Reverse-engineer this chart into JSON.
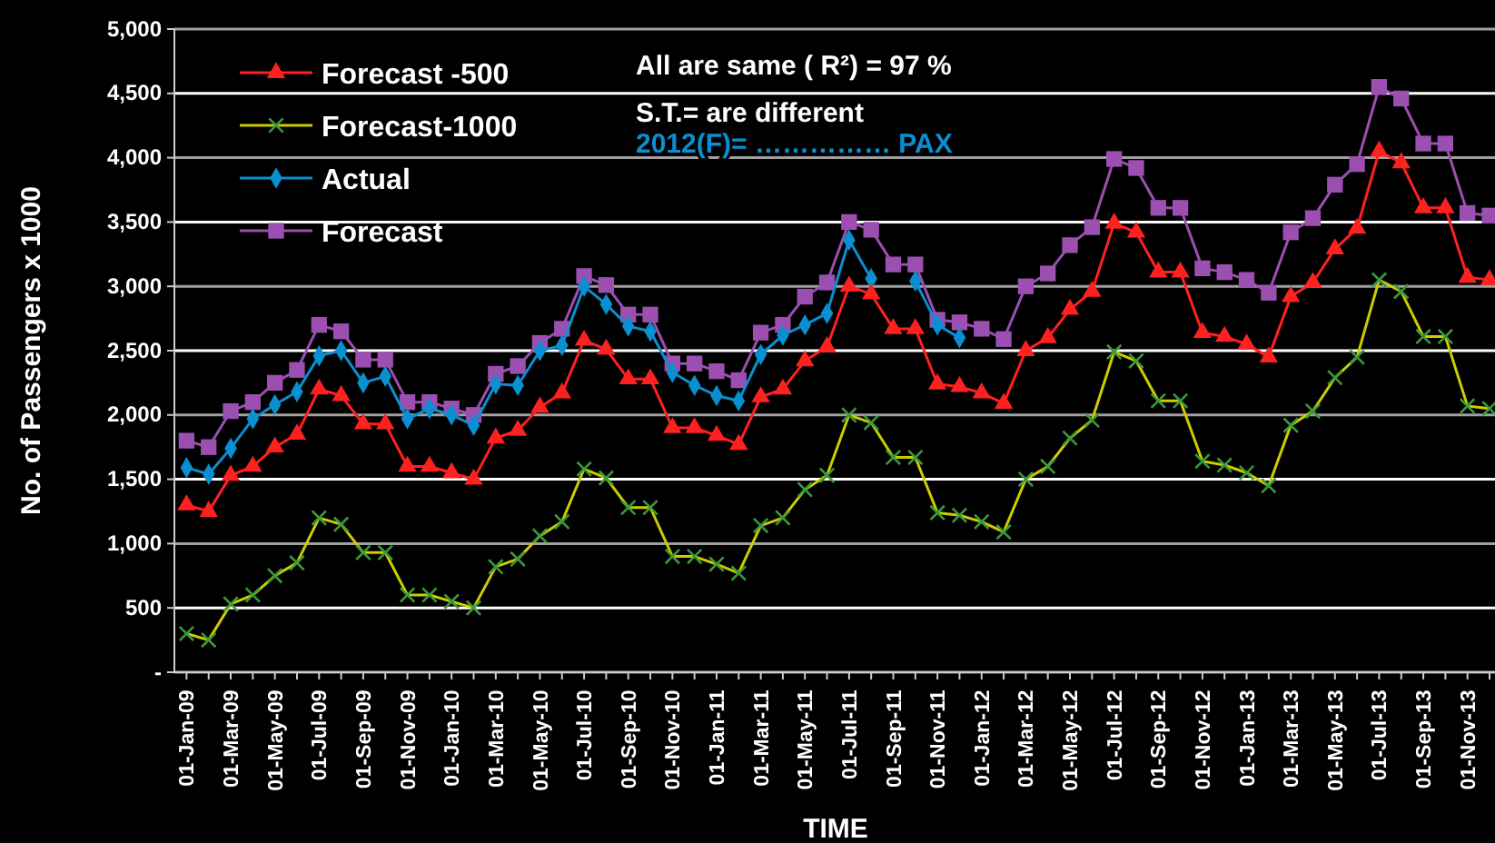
{
  "chart_data": {
    "type": "line",
    "xlabel": "TIME",
    "ylabel": "No. of Passengers x 1000",
    "categories": [
      "01-Jan-09",
      null,
      "01-Mar-09",
      null,
      "01-May-09",
      null,
      "01-Jul-09",
      null,
      "01-Sep-09",
      null,
      "01-Nov-09",
      null,
      "01-Jan-10",
      null,
      "01-Mar-10",
      null,
      "01-May-10",
      null,
      "01-Jul-10",
      null,
      "01-Sep-10",
      null,
      "01-Nov-10",
      null,
      "01-Jan-11",
      null,
      "01-Mar-11",
      null,
      "01-May-11",
      null,
      "01-Jul-11",
      null,
      "01-Sep-11",
      null,
      "01-Nov-11",
      null,
      "01-Jan-12",
      null,
      "01-Mar-12",
      null,
      "01-May-12",
      null,
      "01-Jul-12",
      null,
      "01-Sep-12",
      null,
      "01-Nov-12",
      null,
      "01-Jan-13",
      null,
      "01-Mar-13",
      null,
      "01-May-13",
      null,
      "01-Jul-13",
      null,
      "01-Sep-13",
      null,
      "01-Nov-13",
      null
    ],
    "series": [
      {
        "name": "Forecast -500",
        "color": "#ff2020",
        "marker": "triangle",
        "values": [
          1300,
          1250,
          1530,
          1600,
          1750,
          1850,
          2200,
          2150,
          1930,
          1930,
          1600,
          1600,
          1550,
          1500,
          1820,
          1880,
          2060,
          2170,
          2580,
          2510,
          2280,
          2280,
          1900,
          1900,
          1840,
          1770,
          2140,
          2200,
          2420,
          2530,
          3000,
          2940,
          2670,
          2670,
          2240,
          2220,
          2170,
          2090,
          2500,
          2600,
          2820,
          2960,
          3490,
          3420,
          3110,
          3110,
          2640,
          2610,
          2550,
          2450,
          2920,
          3030,
          3290,
          3450,
          4050,
          3960,
          3610,
          3610,
          3070,
          3050
        ]
      },
      {
        "name": "Forecast-1000",
        "color": "#cccc00",
        "marker": "cross",
        "values": [
          300,
          250,
          530,
          600,
          750,
          850,
          1200,
          1150,
          930,
          930,
          600,
          600,
          550,
          500,
          820,
          880,
          1060,
          1170,
          1580,
          1510,
          1280,
          1280,
          900,
          900,
          840,
          770,
          1140,
          1200,
          1420,
          1530,
          2000,
          1940,
          1670,
          1670,
          1240,
          1220,
          1170,
          1090,
          1500,
          1600,
          1820,
          1960,
          2490,
          2420,
          2110,
          2110,
          1640,
          1610,
          1550,
          1450,
          1920,
          2030,
          2290,
          2450,
          3050,
          2960,
          2610,
          2610,
          2070,
          2050
        ]
      },
      {
        "name": "Actual",
        "color": "#0a8fd0",
        "marker": "diamond",
        "values": [
          1590,
          1540,
          1740,
          1970,
          2080,
          2180,
          2460,
          2500,
          2250,
          2300,
          1970,
          2050,
          2000,
          1920,
          2240,
          2230,
          2500,
          2540,
          3000,
          2860,
          2690,
          2650,
          2330,
          2230,
          2150,
          2110,
          2470,
          2620,
          2700,
          2790,
          3360,
          3060,
          null,
          3040,
          2700,
          2600,
          null,
          null,
          null,
          null,
          null,
          null,
          null,
          null,
          null,
          null,
          null,
          null,
          null,
          null,
          null,
          null,
          null,
          null,
          null,
          null,
          null,
          null,
          null,
          null
        ]
      },
      {
        "name": "Forecast",
        "color": "#9b4fb0",
        "marker": "square",
        "values": [
          1800,
          1750,
          2030,
          2100,
          2250,
          2350,
          2700,
          2650,
          2430,
          2430,
          2100,
          2100,
          2050,
          2000,
          2320,
          2380,
          2560,
          2670,
          3080,
          3010,
          2780,
          2780,
          2400,
          2400,
          2340,
          2270,
          2640,
          2700,
          2920,
          3030,
          3500,
          3440,
          3170,
          3170,
          2740,
          2720,
          2670,
          2590,
          3000,
          3100,
          3320,
          3460,
          3990,
          3920,
          3610,
          3610,
          3140,
          3110,
          3050,
          2950,
          3420,
          3530,
          3790,
          3950,
          4550,
          4460,
          4110,
          4110,
          3570,
          3550
        ]
      }
    ],
    "ylim": [
      0,
      5000
    ],
    "yticks": [
      {
        "value": 0,
        "label": "-"
      },
      {
        "value": 500,
        "label": "500"
      },
      {
        "value": 1000,
        "label": "1,000"
      },
      {
        "value": 1500,
        "label": "1,500"
      },
      {
        "value": 2000,
        "label": "2,000"
      },
      {
        "value": 2500,
        "label": "2,500"
      },
      {
        "value": 3000,
        "label": "3,000"
      },
      {
        "value": 3500,
        "label": "3,500"
      },
      {
        "value": 4000,
        "label": "4,000"
      },
      {
        "value": 4500,
        "label": "4,500"
      },
      {
        "value": 5000,
        "label": "5,000"
      }
    ],
    "grid": "y",
    "legend": "top left",
    "annotations": [
      "All are same ( R²) = 97 %",
      "S.T.= are different",
      "2012(F)= …………… PAX"
    ]
  }
}
